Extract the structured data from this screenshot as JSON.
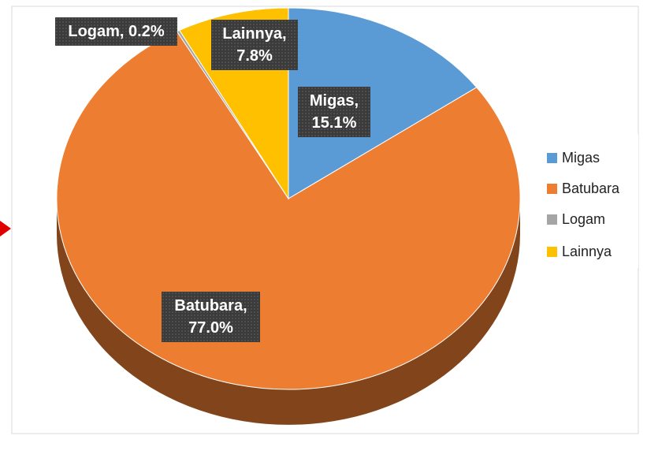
{
  "chart_data": {
    "type": "pie",
    "categories": [
      "Migas",
      "Batubara",
      "Logam",
      "Lainnya"
    ],
    "values": [
      15.1,
      77.0,
      0.2,
      7.8
    ],
    "value_labels": [
      "Migas, 15.1%",
      "Batubara, 77.0%",
      "Logam, 0.2%",
      "Lainnya, 7.8%"
    ],
    "colors": [
      "#5b9bd5",
      "#ed7d31",
      "#a5a5a5",
      "#ffc000"
    ],
    "legend": "right"
  }
}
